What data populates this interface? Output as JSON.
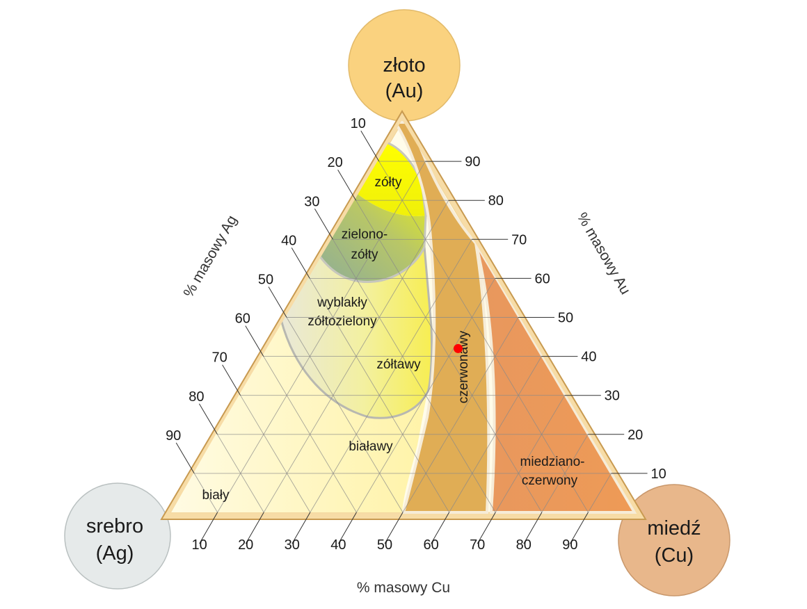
{
  "corners": {
    "top": {
      "line1": "złoto",
      "line2": "(Au)",
      "fill": "#fad27f",
      "stroke": "#e2ba6a"
    },
    "left": {
      "line1": "srebro",
      "line2": "(Ag)",
      "fill": "#e6eaea",
      "stroke": "#b9c0c0"
    },
    "right": {
      "line1": "miedź",
      "line2": "(Cu)",
      "fill": "#e8b78b",
      "stroke": "#c9986c"
    }
  },
  "axes": {
    "ag": "% masowy Ag",
    "au": "% masowy Au",
    "cu": "% masowy Cu"
  },
  "ticks": {
    "ag": [
      "10",
      "20",
      "30",
      "40",
      "50",
      "60",
      "70",
      "80",
      "90"
    ],
    "au": [
      "90",
      "80",
      "70",
      "60",
      "50",
      "40",
      "30",
      "20",
      "10"
    ],
    "cu": [
      "10",
      "20",
      "30",
      "40",
      "50",
      "60",
      "70",
      "80",
      "90"
    ]
  },
  "regions": {
    "zolty": "zółty",
    "zielono1": "zielono-",
    "zielono2": "zółty",
    "wyblakly1": "wyblakły",
    "wyblakly2": "zółtozielony",
    "zoltawy": "zółtawy",
    "czerwonawy": "czerwonawy",
    "bialawy": "białawy",
    "bialy": "biały",
    "miedz1": "miedziano-",
    "miedz2": "czerwony"
  },
  "colors": {
    "triangle_edge": "#f6d9a4",
    "triangle_line": "#c8a060",
    "grid": "#8a8a8a",
    "red_band": "#e0ae55",
    "copper": "#e8975a",
    "yellow": "#ffff00",
    "green": "#9fb07d",
    "whitish": "#fff7c4",
    "marker": "#ff0000"
  },
  "marker": {
    "cu": 41,
    "au": 42,
    "ag": 17
  }
}
